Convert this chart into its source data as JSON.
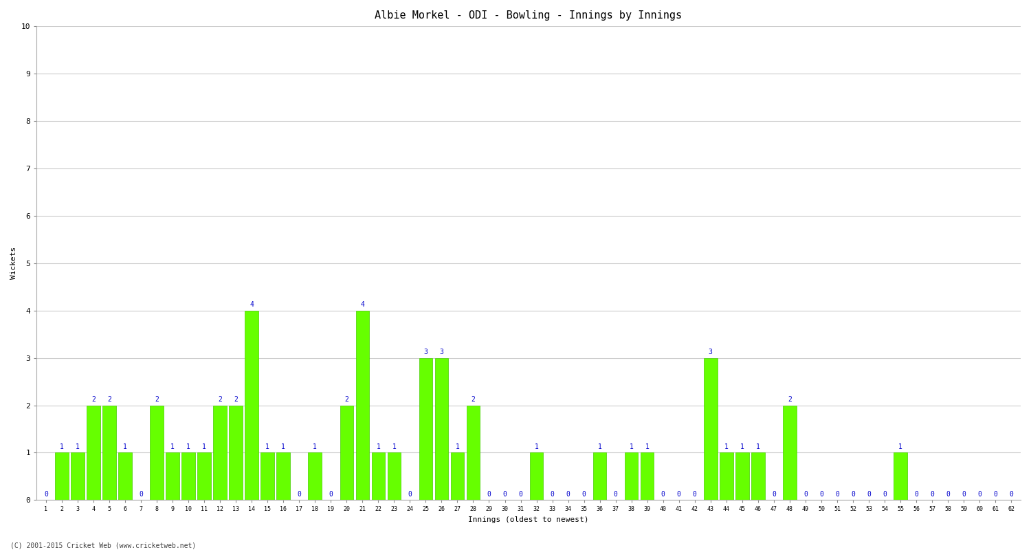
{
  "title": "Albie Morkel - ODI - Bowling - Innings by Innings",
  "xlabel": "Innings (oldest to newest)",
  "ylabel": "Wickets",
  "background_color": "#ffffff",
  "plot_bg_color": "#ffffff",
  "bar_color": "#66ff00",
  "bar_edge_color": "#44cc00",
  "label_color": "#0000cc",
  "grid_color": "#cccccc",
  "title_fontsize": 11,
  "annotation_fontsize": 7,
  "ylim": [
    0,
    10
  ],
  "yticks": [
    0,
    1,
    2,
    3,
    4,
    5,
    6,
    7,
    8,
    9,
    10
  ],
  "innings": [
    1,
    2,
    3,
    4,
    5,
    6,
    7,
    8,
    9,
    10,
    11,
    12,
    13,
    14,
    15,
    16,
    17,
    18,
    19,
    20,
    21,
    22,
    23,
    24,
    25,
    26,
    27,
    28,
    29,
    30,
    31,
    32,
    33,
    34,
    35,
    36,
    37,
    38,
    39,
    40,
    41,
    42,
    43,
    44,
    45,
    46,
    47,
    48,
    49,
    50,
    51,
    52,
    53,
    54,
    55,
    56,
    57,
    58,
    59,
    60,
    61,
    62
  ],
  "wickets": [
    0,
    1,
    1,
    2,
    2,
    1,
    0,
    2,
    1,
    1,
    1,
    2,
    2,
    4,
    1,
    1,
    0,
    1,
    0,
    2,
    4,
    1,
    1,
    0,
    3,
    3,
    1,
    2,
    0,
    0,
    0,
    1,
    0,
    0,
    0,
    1,
    0,
    1,
    1,
    0,
    0,
    0,
    3,
    1,
    1,
    1,
    0,
    2,
    0,
    0,
    0,
    0,
    0,
    0,
    1,
    0,
    0,
    0,
    0,
    0,
    0,
    0
  ],
  "copyright": "(C) 2001-2015 Cricket Web (www.cricketweb.net)"
}
